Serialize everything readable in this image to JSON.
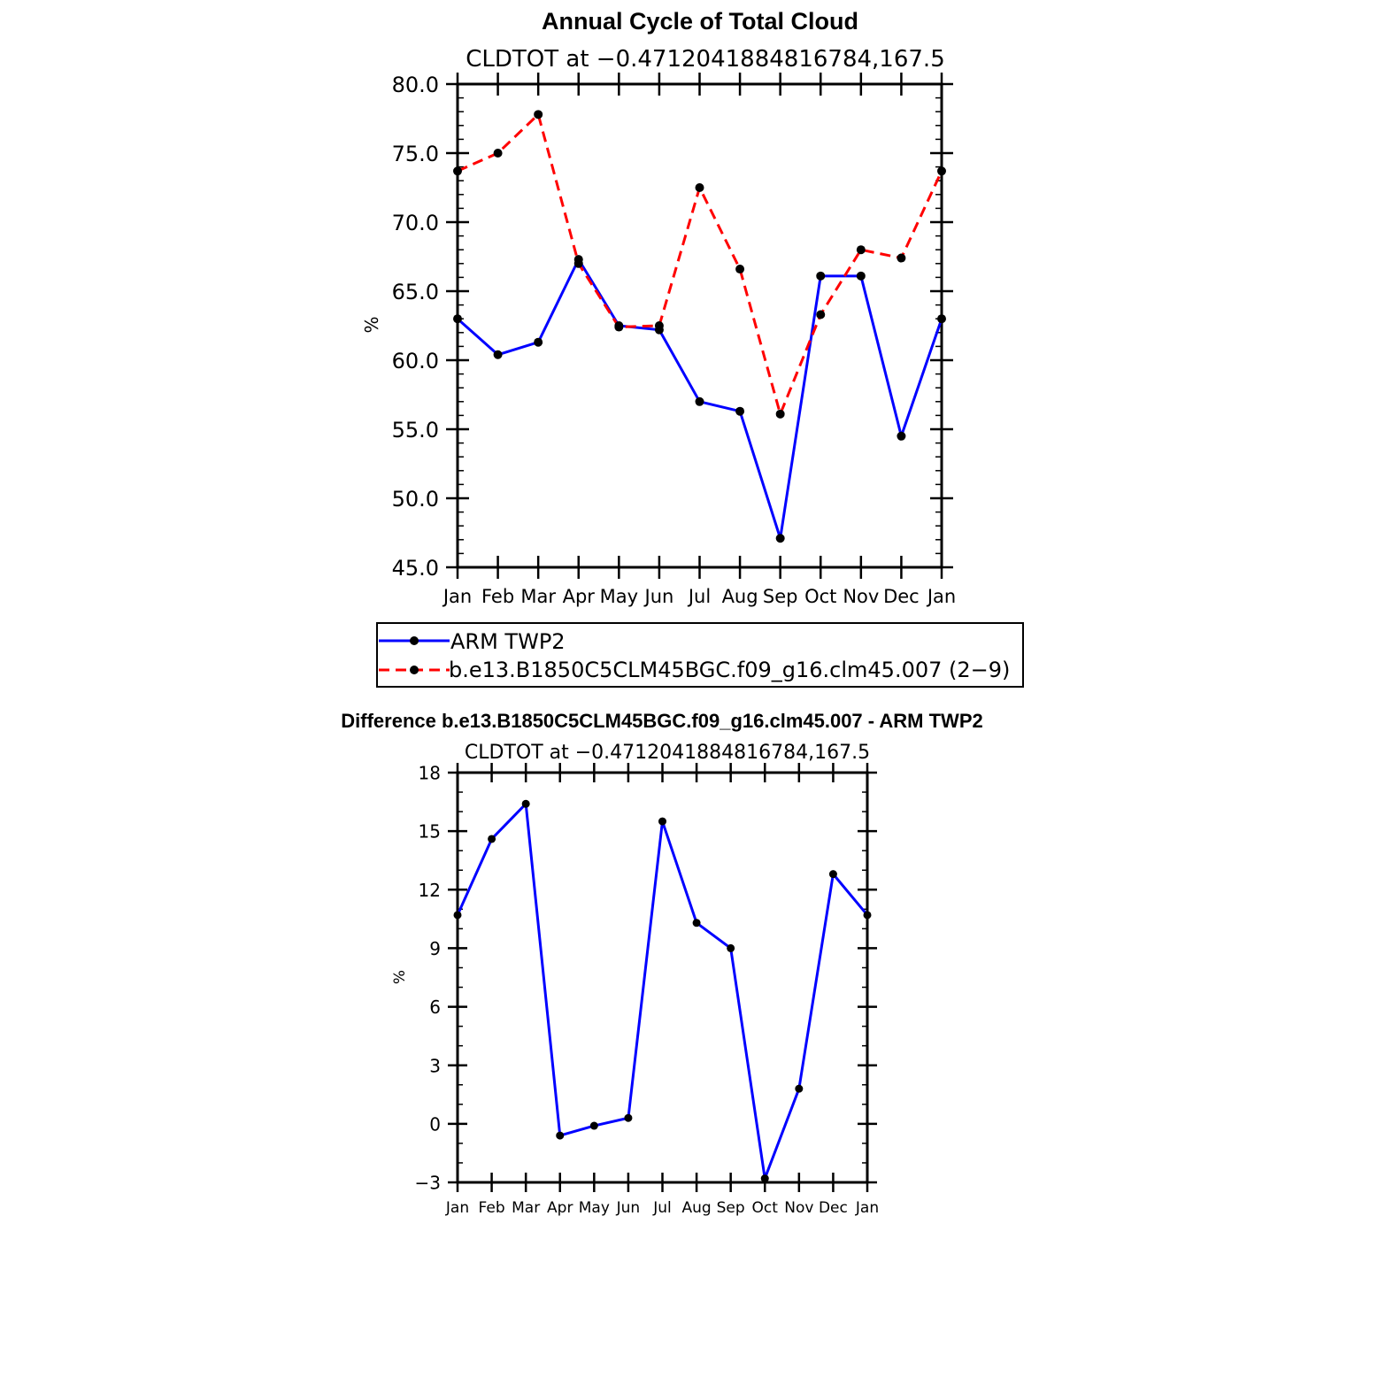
{
  "chart_data": [
    {
      "type": "line",
      "title": "Annual Cycle of Total Cloud",
      "subtitle": "CLDTOT at −0.4712041884816784,167.5",
      "xlabel": "",
      "ylabel": "%",
      "categories": [
        "Jan",
        "Feb",
        "Mar",
        "Apr",
        "May",
        "Jun",
        "Jul",
        "Aug",
        "Sep",
        "Oct",
        "Nov",
        "Dec",
        "Jan"
      ],
      "ylim": [
        45,
        80
      ],
      "yticks": [
        45,
        50,
        55,
        60,
        65,
        70,
        75,
        80
      ],
      "ytick_labels": [
        "45.0",
        "50.0",
        "55.0",
        "60.0",
        "65.0",
        "70.0",
        "75.0",
        "80.0"
      ],
      "series": [
        {
          "name": "ARM  TWP2",
          "color": "#0000ff",
          "style": "solid",
          "values": [
            63.0,
            60.4,
            61.3,
            67.3,
            62.5,
            62.2,
            57.0,
            56.3,
            47.1,
            66.1,
            66.1,
            54.5,
            63.0
          ]
        },
        {
          "name": "b.e13.B1850C5CLM45BGC.f09_g16.clm45.007 (2−9)",
          "color": "#ff0000",
          "style": "dashed",
          "values": [
            73.7,
            75.0,
            77.8,
            67.0,
            62.4,
            62.5,
            72.5,
            66.6,
            56.1,
            63.3,
            68.0,
            67.4,
            73.7
          ]
        }
      ],
      "legend": "below"
    },
    {
      "type": "line",
      "title": "Difference b.e13.B1850C5CLM45BGC.f09_g16.clm45.007 - ARM TWP2",
      "subtitle": "CLDTOT at −0.4712041884816784,167.5",
      "xlabel": "",
      "ylabel": "%",
      "categories": [
        "Jan",
        "Feb",
        "Mar",
        "Apr",
        "May",
        "Jun",
        "Jul",
        "Aug",
        "Sep",
        "Oct",
        "Nov",
        "Dec",
        "Jan"
      ],
      "ylim": [
        -3,
        18
      ],
      "yticks": [
        -3,
        0,
        3,
        6,
        9,
        12,
        15,
        18
      ],
      "ytick_labels": [
        "−3",
        "0",
        "3",
        "6",
        "9",
        "12",
        "15",
        "18"
      ],
      "series": [
        {
          "name": "Difference",
          "color": "#0000ff",
          "style": "solid",
          "values": [
            10.7,
            14.6,
            16.4,
            -0.6,
            -0.1,
            0.3,
            15.5,
            10.3,
            9.0,
            -2.8,
            1.8,
            12.8,
            10.7
          ]
        }
      ]
    }
  ]
}
